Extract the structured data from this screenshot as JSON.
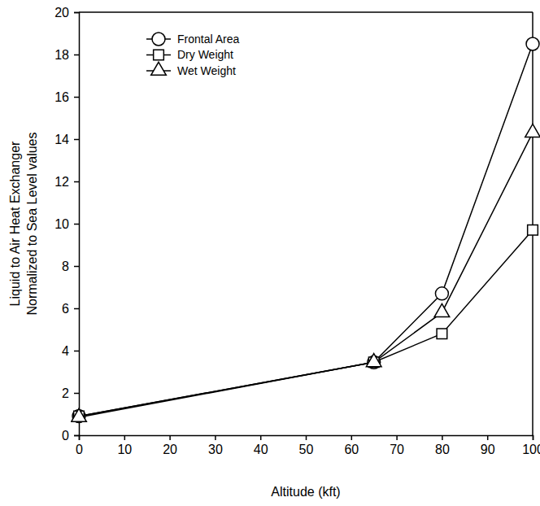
{
  "chart_data": {
    "type": "line",
    "x_label": "Altitude (kft)",
    "y_label": [
      "Liquid to Air Heat Exchanger",
      "Normalized to Sea Level values"
    ],
    "x": [
      0,
      65,
      80,
      100
    ],
    "series": [
      {
        "name": "Frontal Area",
        "color": "#000000",
        "marker": "circle",
        "line_style": "solid",
        "values": [
          0.9,
          3.45,
          6.7,
          18.5
        ]
      },
      {
        "name": "Dry Weight",
        "color": "#000000",
        "marker": "square",
        "line_style": "solid",
        "values": [
          0.9,
          3.45,
          4.8,
          9.7
        ]
      },
      {
        "name": "Wet Weight",
        "color": "#000000",
        "marker": "triangle",
        "line_style": "solid",
        "values": [
          0.85,
          3.45,
          5.8,
          14.3
        ]
      }
    ],
    "xlim": [
      0,
      100
    ],
    "xticks": [
      0,
      10,
      20,
      30,
      40,
      50,
      60,
      70,
      80,
      90,
      100
    ],
    "ylim": [
      0,
      20
    ],
    "yticks": [
      0,
      2,
      4,
      6,
      8,
      10,
      12,
      14,
      16,
      18,
      20
    ],
    "grid": false,
    "legend": "upper left"
  }
}
